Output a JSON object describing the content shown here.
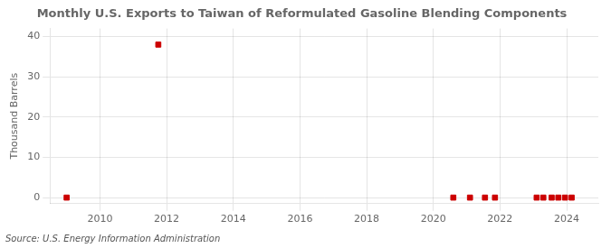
{
  "chart_data": {
    "type": "scatter",
    "title": "Monthly U.S. Exports to Taiwan of Reformulated Gasoline Blending Components",
    "ylabel": "Thousand Barrels",
    "annotations": [
      "Source: U.S. Energy Information Administration"
    ],
    "x": [
      2009.0,
      2011.75,
      2020.6,
      2021.1,
      2021.55,
      2021.85,
      2023.1,
      2023.3,
      2023.55,
      2023.75,
      2023.95,
      2024.15
    ],
    "values": [
      0.0,
      38.0,
      0.0,
      0.0,
      0.0,
      0.0,
      0.0,
      0.0,
      0.0,
      0.0,
      0.0,
      0.0
    ],
    "color": "#cc0000",
    "marker": "square",
    "xlim": [
      2008.5,
      2024.95
    ],
    "xticks": [
      2010,
      2012,
      2014,
      2016,
      2018,
      2020,
      2022,
      2024
    ],
    "ylim": [
      -1.5,
      42
    ],
    "yticks": [
      0,
      10,
      20,
      30,
      40
    ],
    "grid": true
  }
}
